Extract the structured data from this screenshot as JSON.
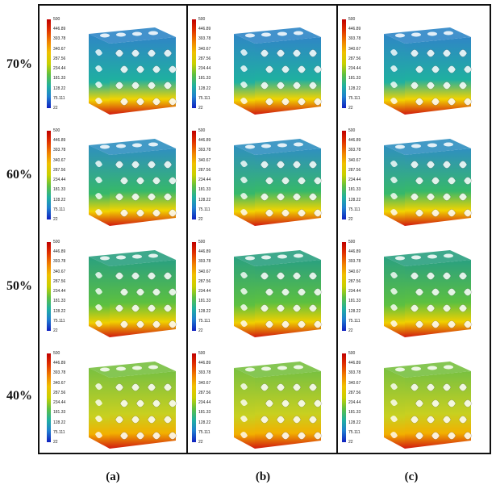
{
  "rows": [
    {
      "label": "70%",
      "top_color": "#2f86c6",
      "mid_color": "#1fb0a0",
      "bottom_color": "#d11a0f",
      "accent": "#f2d400"
    },
    {
      "label": "60%",
      "top_color": "#2f8fc0",
      "mid_color": "#36b86a",
      "bottom_color": "#d11a0f",
      "accent": "#f2d400"
    },
    {
      "label": "50%",
      "top_color": "#2aa080",
      "mid_color": "#5cc040",
      "bottom_color": "#d11a0f",
      "accent": "#f0d000"
    },
    {
      "label": "40%",
      "top_color": "#78c040",
      "mid_color": "#c8d020",
      "bottom_color": "#d11a0f",
      "accent": "#f2b000"
    }
  ],
  "columns": [
    {
      "label": "(a)"
    },
    {
      "label": "(b)"
    },
    {
      "label": "(c)"
    }
  ],
  "legend_values": [
    "500",
    "446.89",
    "393.78",
    "340.67",
    "287.56",
    "234.44",
    "181.33",
    "128.22",
    "75.111",
    "22"
  ]
}
